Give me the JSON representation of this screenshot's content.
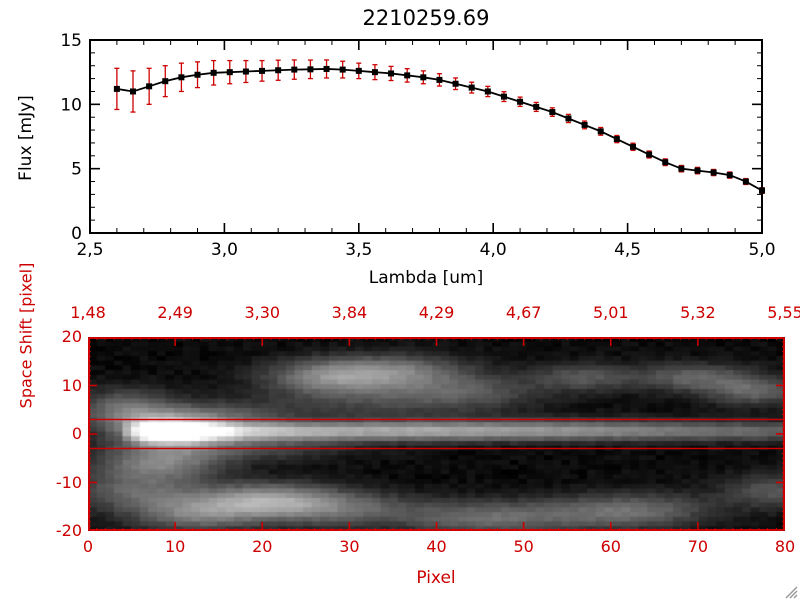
{
  "window": {
    "background": "#ffffff"
  },
  "colors": {
    "foreground": "#000000",
    "accent_red": "#cc0000",
    "image_background": "#000000",
    "resize_grip": "#999999"
  },
  "chart_data": [
    {
      "type": "line",
      "title": "2210259.69",
      "xlabel": "Lambda [um]",
      "ylabel": "Flux [mJy]",
      "xlim": [
        2.5,
        5.0
      ],
      "ylim": [
        0,
        15
      ],
      "xtick_values": [
        2.5,
        3.0,
        3.5,
        4.0,
        4.5,
        5.0
      ],
      "xtick_labels": [
        "2,5",
        "3,0",
        "3,5",
        "4,0",
        "4,5",
        "5,0"
      ],
      "ytick_values": [
        0,
        5,
        10,
        15
      ],
      "ytick_labels": [
        "0",
        "5",
        "10",
        "15"
      ],
      "marker": "filled-square",
      "line_color": "#000000",
      "marker_color": "#000000",
      "error_color": "#cc0000",
      "grid": false,
      "x": [
        2.6,
        2.66,
        2.72,
        2.78,
        2.84,
        2.9,
        2.96,
        3.02,
        3.08,
        3.14,
        3.2,
        3.26,
        3.32,
        3.38,
        3.44,
        3.5,
        3.56,
        3.62,
        3.68,
        3.74,
        3.8,
        3.86,
        3.92,
        3.98,
        4.04,
        4.1,
        4.16,
        4.22,
        4.28,
        4.34,
        4.4,
        4.46,
        4.52,
        4.58,
        4.64,
        4.7,
        4.76,
        4.82,
        4.88,
        4.94,
        5.0
      ],
      "y": [
        11.2,
        11.0,
        11.4,
        11.8,
        12.1,
        12.3,
        12.45,
        12.5,
        12.55,
        12.6,
        12.65,
        12.7,
        12.72,
        12.75,
        12.7,
        12.6,
        12.5,
        12.4,
        12.25,
        12.1,
        11.9,
        11.6,
        11.3,
        11.0,
        10.6,
        10.2,
        9.8,
        9.4,
        8.9,
        8.4,
        7.9,
        7.3,
        6.7,
        6.1,
        5.5,
        5.0,
        4.85,
        4.7,
        4.5,
        4.0,
        3.3
      ],
      "yerr": [
        1.6,
        1.6,
        1.4,
        1.2,
        1.1,
        1.0,
        0.95,
        0.9,
        0.85,
        0.8,
        0.78,
        0.75,
        0.72,
        0.7,
        0.65,
        0.6,
        0.58,
        0.55,
        0.52,
        0.5,
        0.48,
        0.45,
        0.42,
        0.4,
        0.38,
        0.36,
        0.35,
        0.33,
        0.32,
        0.3,
        0.3,
        0.28,
        0.28,
        0.27,
        0.26,
        0.25,
        0.25,
        0.24,
        0.24,
        0.23,
        0.22
      ]
    },
    {
      "type": "heatmap",
      "xlabel": "Pixel",
      "ylabel": "Space Shift [pixel]",
      "xlim": [
        0,
        80
      ],
      "ylim": [
        -20,
        20
      ],
      "xtick_values": [
        0,
        10,
        20,
        30,
        40,
        50,
        60,
        70,
        80
      ],
      "xtick_labels": [
        "0",
        "10",
        "20",
        "30",
        "40",
        "50",
        "60",
        "70",
        "80"
      ],
      "ytick_values": [
        20,
        10,
        0,
        -10,
        -20
      ],
      "ytick_labels": [
        "20",
        "10",
        "0",
        "-10",
        "-20"
      ],
      "top_axis_tick_labels": [
        "1,48",
        "2,49",
        "3,30",
        "3,84",
        "4,29",
        "4,67",
        "5,01",
        "5,32",
        "5,55"
      ],
      "axis_color": "#cc0000",
      "aperture_lines_y": [
        3,
        -3
      ],
      "trace": {
        "y0": 0.5,
        "sigma_y": 1.4,
        "profile": [
          [
            0,
            0
          ],
          [
            3,
            0.05
          ],
          [
            5,
            0.5
          ],
          [
            7,
            1.0
          ],
          [
            10,
            1.0
          ],
          [
            14,
            0.9
          ],
          [
            18,
            0.7
          ],
          [
            24,
            0.6
          ],
          [
            30,
            0.55
          ],
          [
            38,
            0.55
          ],
          [
            46,
            0.5
          ],
          [
            54,
            0.45
          ],
          [
            62,
            0.4
          ],
          [
            70,
            0.35
          ],
          [
            80,
            0.3
          ]
        ]
      },
      "blobs": [
        {
          "x": 9,
          "y": 0.5,
          "sx": 4,
          "sy": 2.5,
          "a": 0.5
        },
        {
          "x": 8,
          "y": -6,
          "sx": 5,
          "sy": 2.5,
          "a": 0.4
        },
        {
          "x": 4,
          "y": 5,
          "sx": 4,
          "sy": 3,
          "a": 0.35
        },
        {
          "x": 14,
          "y": 4,
          "sx": 6,
          "sy": 2,
          "a": 0.25
        },
        {
          "x": 20,
          "y": -14,
          "sx": 6,
          "sy": 2.5,
          "a": 0.5
        },
        {
          "x": 12,
          "y": -17,
          "sx": 5,
          "sy": 2.5,
          "a": 0.35
        },
        {
          "x": 5,
          "y": -12,
          "sx": 5,
          "sy": 3,
          "a": 0.3
        },
        {
          "x": 18,
          "y": -3,
          "sx": 8,
          "sy": 1.8,
          "a": 0.2
        },
        {
          "x": 29,
          "y": -16,
          "sx": 7,
          "sy": 2.5,
          "a": 0.3
        },
        {
          "x": 27,
          "y": 12,
          "sx": 5,
          "sy": 2.5,
          "a": 0.35
        },
        {
          "x": 35,
          "y": 13,
          "sx": 6,
          "sy": 2.5,
          "a": 0.4
        },
        {
          "x": 33,
          "y": 7,
          "sx": 9,
          "sy": 2.5,
          "a": 0.18
        },
        {
          "x": 45,
          "y": -18,
          "sx": 6,
          "sy": 2.5,
          "a": 0.28
        },
        {
          "x": 44,
          "y": 9,
          "sx": 6,
          "sy": 2.5,
          "a": 0.2
        },
        {
          "x": 48,
          "y": 2,
          "sx": 18,
          "sy": 1.5,
          "a": 0.1
        },
        {
          "x": 56,
          "y": -17,
          "sx": 7,
          "sy": 2.5,
          "a": 0.2
        },
        {
          "x": 57,
          "y": 12,
          "sx": 4,
          "sy": 2,
          "a": 0.25
        },
        {
          "x": 64,
          "y": -16,
          "sx": 6,
          "sy": 2.5,
          "a": 0.25
        },
        {
          "x": 70,
          "y": 12,
          "sx": 5,
          "sy": 2,
          "a": 0.3
        },
        {
          "x": 77,
          "y": 9,
          "sx": 4,
          "sy": 2,
          "a": 0.3
        },
        {
          "x": 79,
          "y": -12,
          "sx": 4,
          "sy": 2.5,
          "a": 0.25
        }
      ],
      "noise_amplitude": 0.05
    }
  ]
}
